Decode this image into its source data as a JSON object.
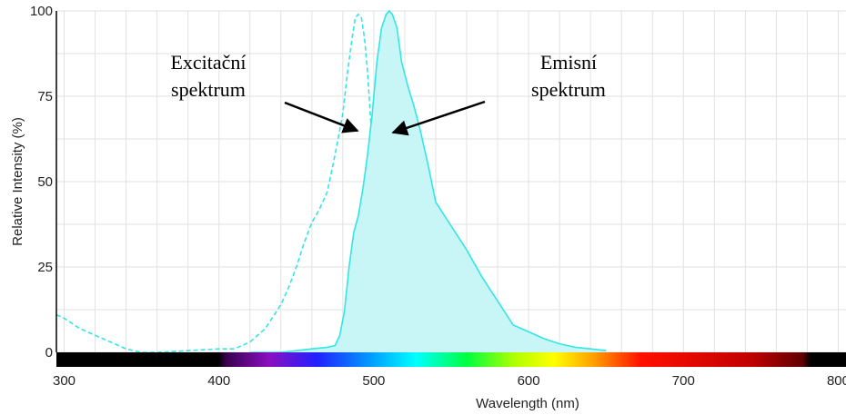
{
  "chart_data": {
    "type": "area",
    "xlabel": "Wavelength (nm)",
    "ylabel": "Relative Intensity (%)",
    "xlim": [
      295,
      805
    ],
    "ylim": [
      0,
      100
    ],
    "x_ticks": [
      "300",
      "400",
      "500",
      "600",
      "700",
      "800"
    ],
    "y_ticks": [
      "0",
      "25",
      "50",
      "75",
      "100"
    ],
    "grid": true,
    "series": [
      {
        "line_style": "dashed",
        "filled": false,
        "color": "#33e6e6",
        "x": [
          295,
          300,
          310,
          320,
          330,
          340,
          350,
          360,
          380,
          400,
          410,
          420,
          430,
          440,
          445,
          450,
          455,
          460,
          465,
          470,
          475,
          480,
          483,
          486,
          488,
          490,
          492,
          494,
          496,
          498,
          500,
          502,
          504,
          506,
          508,
          510,
          515,
          520,
          525,
          530,
          540,
          560,
          600,
          650
        ],
        "y": [
          11,
          10,
          7,
          5,
          3,
          1,
          0,
          0,
          0.5,
          1,
          1,
          3,
          7,
          14,
          19,
          25,
          32,
          38,
          42,
          47,
          58,
          70,
          82,
          92,
          98,
          99,
          98,
          92,
          82,
          68,
          52,
          40,
          30,
          22,
          15,
          10,
          5,
          2.5,
          1.5,
          1,
          0.5,
          0.5,
          0.5,
          0.5
        ]
      },
      {
        "line_style": "solid",
        "filled": true,
        "color": "#33e6e6",
        "fill_color": "#c8f6f6",
        "x": [
          420,
          440,
          460,
          470,
          475,
          478,
          481,
          484,
          487,
          490,
          493,
          496,
          499,
          502,
          505,
          508,
          510,
          512,
          515,
          518,
          522,
          526,
          530,
          535,
          540,
          550,
          560,
          570,
          580,
          590,
          600,
          610,
          620,
          630,
          640,
          650
        ],
        "y": [
          0,
          0,
          1,
          1.5,
          2,
          5,
          12,
          25,
          35,
          40,
          48,
          58,
          70,
          85,
          95,
          99,
          100,
          99,
          95,
          85,
          78,
          72,
          65,
          55,
          44,
          37,
          30,
          22,
          15,
          8,
          6,
          4,
          2.5,
          1.5,
          1,
          0.5
        ]
      }
    ],
    "annotations": [
      {
        "lines": [
          "Excitační",
          "spektrum"
        ]
      },
      {
        "lines": [
          "Emisní",
          "spektrum"
        ]
      }
    ]
  }
}
